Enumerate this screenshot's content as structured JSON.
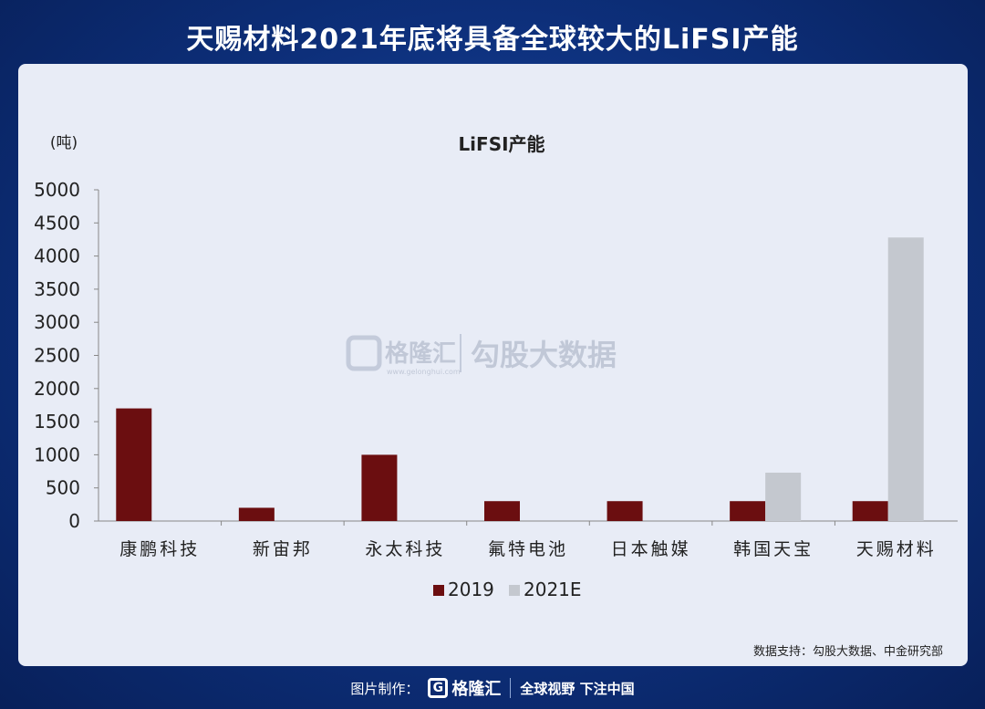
{
  "header": {
    "title": "天赐材料2021年底将具备全球较大的LiFSI产能"
  },
  "watermark": {
    "brand": "格隆汇",
    "site": "www.gelonghui.com",
    "label": "勾股大数据"
  },
  "source": "数据支持：勾股大数据、中金研究部",
  "footer": {
    "made_by": "图片制作：",
    "brand": "格隆汇",
    "slogan": "全球视野 下注中国"
  },
  "chart_data": {
    "type": "bar",
    "title": "LiFSI产能",
    "unit_label": "(吨)",
    "categories": [
      "康鹏科技",
      "新宙邦",
      "永太科技",
      "氟特电池",
      "日本触媒",
      "韩国天宝",
      "天赐材料"
    ],
    "series": [
      {
        "name": "2019",
        "color": "#6b0e10",
        "values": [
          1700,
          200,
          1000,
          300,
          300,
          300,
          300
        ]
      },
      {
        "name": "2021E",
        "color": "#c4c8cf",
        "values": [
          null,
          null,
          null,
          null,
          null,
          730,
          4280
        ]
      }
    ],
    "ylim": [
      0,
      5000
    ],
    "yticks": [
      0,
      500,
      1000,
      1500,
      2000,
      2500,
      3000,
      3500,
      4000,
      4500,
      5000
    ],
    "legend_position": "bottom"
  }
}
